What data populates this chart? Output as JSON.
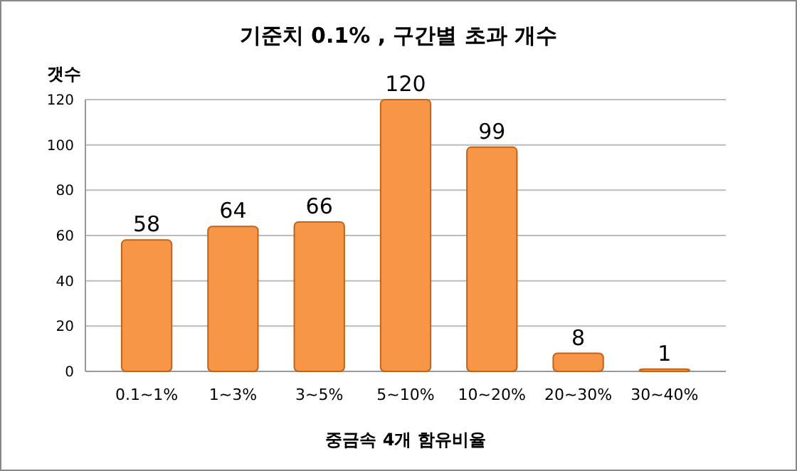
{
  "chart_data": {
    "type": "bar",
    "title": "기준치 0.1% , 구간별 초과 개수",
    "xlabel": "중금속 4개 함유비율",
    "ylabel": "갯수",
    "categories": [
      "0.1~1%",
      "1~3%",
      "3~5%",
      "5~10%",
      "10~20%",
      "20~30%",
      "30~40%"
    ],
    "values": [
      58,
      64,
      66,
      120,
      99,
      8,
      1
    ],
    "color": "#f79646",
    "ylim": [
      0,
      120
    ],
    "yticks": [
      0,
      20,
      40,
      60,
      80,
      100,
      120
    ],
    "grid": "y",
    "data_labels": true
  }
}
